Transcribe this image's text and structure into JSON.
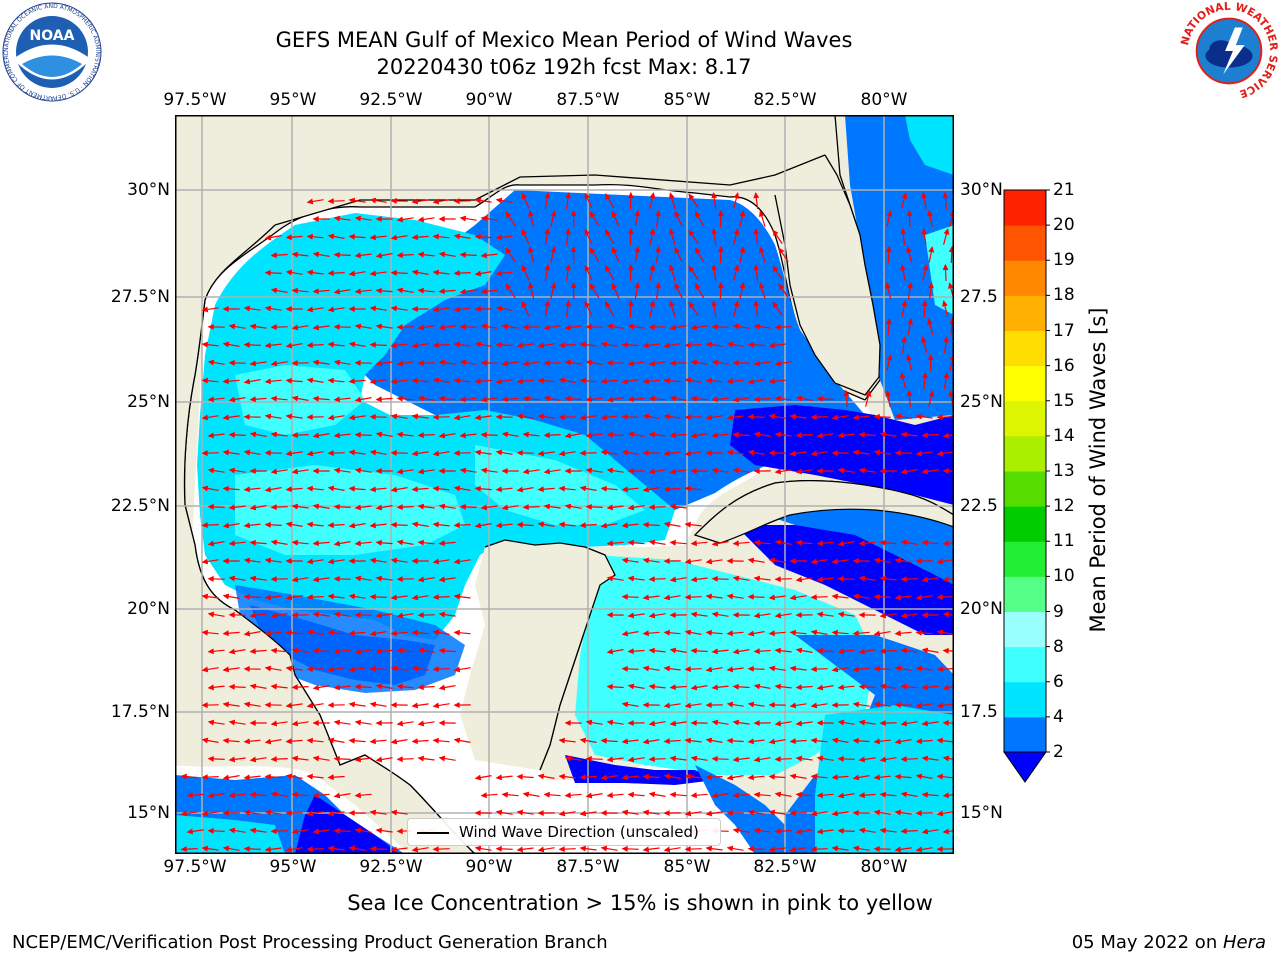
{
  "header": {
    "title_line1": "GEFS MEAN Gulf of Mexico Mean Period of Wind Waves",
    "title_line2": "20220430 t06z 192h fcst   Max: 8.17"
  },
  "map": {
    "lon_ticks": [
      "97.5°W",
      "95°W",
      "92.5°W",
      "90°W",
      "87.5°W",
      "85°W",
      "82.5°W",
      "80°W"
    ],
    "lat_ticks": [
      "30°N",
      "27.5°N",
      "25°N",
      "22.5°N",
      "20°N",
      "17.5°N",
      "15°N"
    ],
    "lat_ticks_right": [
      "30°N",
      "27.5",
      "25°N",
      "22.5",
      "20°N",
      "17.5",
      "15°N"
    ],
    "legend_label": "Wind Wave Direction (unscaled)",
    "land_color": "#efeddc",
    "ocean_color": "#ffffff",
    "grid_color": "#b0b0b0",
    "arrow_color": "#ff0000"
  },
  "colorbar": {
    "label": "Mean Period of Wind Waves [s]",
    "ticks": [
      "2",
      "4",
      "6",
      "8",
      "9",
      "10",
      "11",
      "12",
      "13",
      "14",
      "15",
      "16",
      "17",
      "18",
      "19",
      "20",
      "21"
    ],
    "colors": [
      "#0077ff",
      "#00e5ff",
      "#40ffff",
      "#99ffff",
      "#55ff88",
      "#22ee33",
      "#00cc00",
      "#55dd00",
      "#aaee00",
      "#ddf500",
      "#ffff00",
      "#ffdd00",
      "#ffb000",
      "#ff8800",
      "#ff5500",
      "#ff2200"
    ],
    "under_color": "#0000ff"
  },
  "note": "Sea Ice Concentration > 15% is shown in pink to yellow",
  "footer": {
    "left": "NCEP/EMC/Verification Post Processing Product Generation Branch",
    "date": "05 May 2022 on ",
    "machine": "Hera"
  },
  "logos": {
    "noaa_text": "NOAA",
    "noaa_ring": "NATIONAL OCEANIC AND ATMOSPHERIC ADMINISTRATION · U.S. DEPARTMENT OF COMMERCE",
    "nws_ring": "NATIONAL WEATHER SERVICE"
  }
}
